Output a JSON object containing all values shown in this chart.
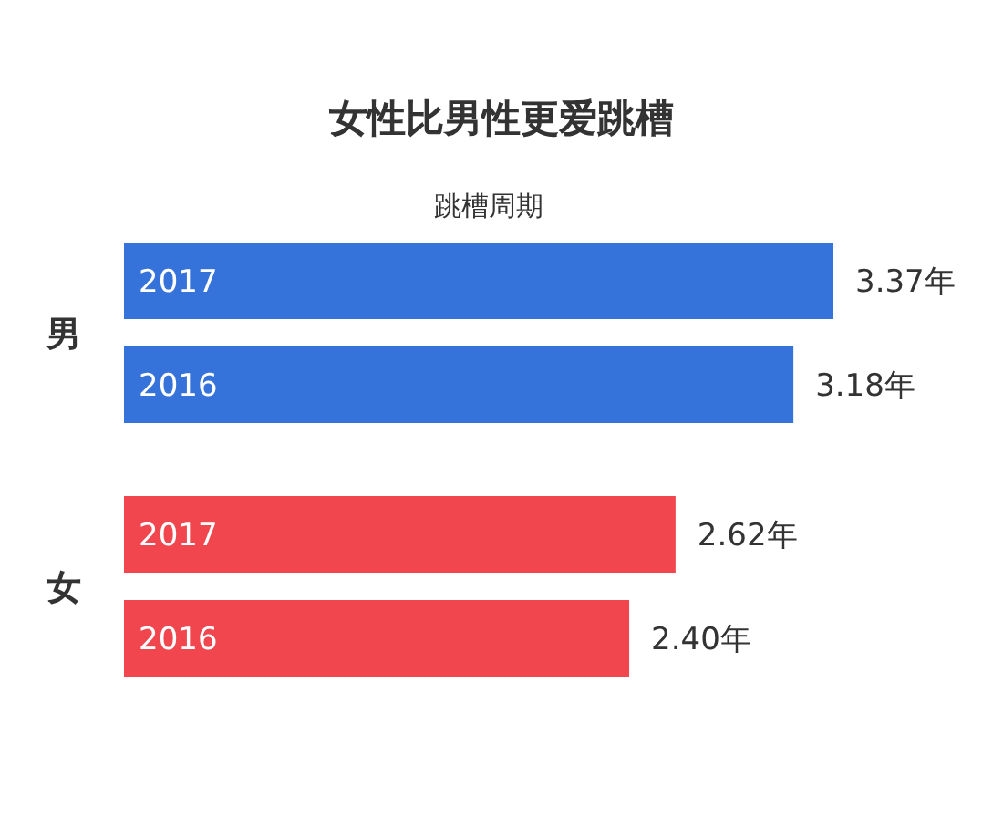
{
  "chart_data": {
    "type": "bar",
    "orientation": "horizontal",
    "title": "女性比男性更爱跳槽",
    "subtitle": "跳槽周期",
    "categories": [
      "2017",
      "2016",
      "2017",
      "2016"
    ],
    "series": [
      {
        "name": "男",
        "color": "#3572da",
        "values": [
          3.37,
          3.18,
          null,
          null
        ],
        "value_labels": [
          "3.37年",
          "3.18年",
          null,
          null
        ]
      },
      {
        "name": "女",
        "color": "#f2464f",
        "values": [
          null,
          null,
          2.62,
          2.4
        ],
        "value_labels": [
          null,
          null,
          "2.62年",
          "2.40年"
        ]
      }
    ],
    "legend": false
  }
}
